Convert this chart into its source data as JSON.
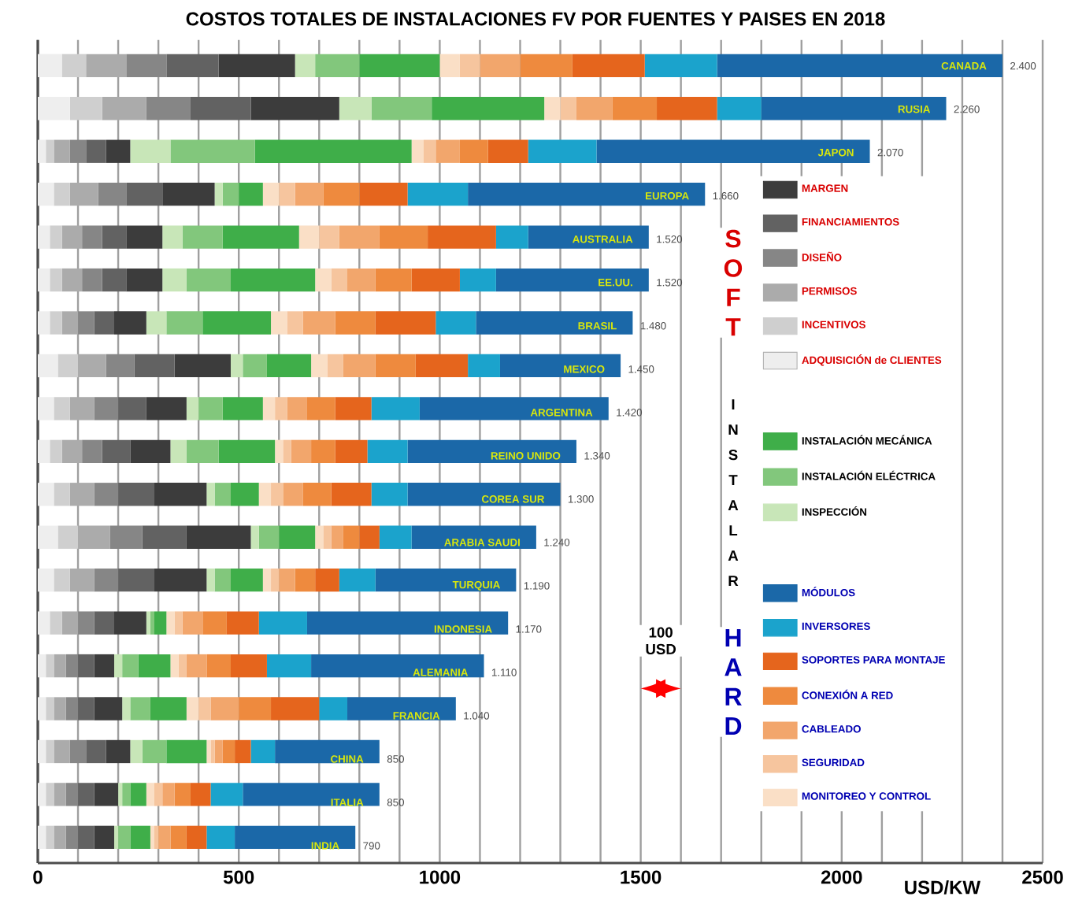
{
  "chart_data": {
    "type": "bar",
    "orientation": "horizontal",
    "stacked": true,
    "title": "COSTOS TOTALES DE INSTALACIONES FV POR FUENTES Y PAISES EN 2018",
    "xlabel": "USD/KW",
    "categories": [
      "CANADA",
      "RUSIA",
      "JAPON",
      "EUROPA",
      "AUSTRALIA",
      "EE.UU.",
      "BRASIL",
      "MEXICO",
      "ARGENTINA",
      "REINO UNIDO",
      "COREA SUR",
      "ARABIA SAUDI",
      "TURQUIA",
      "INDONESIA",
      "ALEMANIA",
      "FRANCIA",
      "CHINA",
      "ITALIA",
      "INDIA"
    ],
    "series": [
      {
        "name": "ADQUISICIÓN de CLIENTES",
        "color": "#eeeeee",
        "values": [
          60,
          80,
          20,
          40,
          30,
          30,
          30,
          50,
          40,
          30,
          40,
          50,
          40,
          30,
          20,
          20,
          20,
          20,
          20
        ]
      },
      {
        "name": "INCENTIVOS",
        "color": "#cfcfcf",
        "values": [
          60,
          80,
          20,
          40,
          30,
          30,
          30,
          50,
          40,
          30,
          40,
          50,
          40,
          30,
          20,
          20,
          20,
          20,
          20
        ]
      },
      {
        "name": "PERMISOS",
        "color": "#ababab",
        "values": [
          100,
          110,
          40,
          70,
          50,
          50,
          40,
          70,
          60,
          50,
          60,
          80,
          60,
          40,
          30,
          30,
          40,
          30,
          30
        ]
      },
      {
        "name": "DISEÑO",
        "color": "#868686",
        "values": [
          100,
          110,
          40,
          70,
          50,
          50,
          40,
          70,
          60,
          50,
          60,
          80,
          60,
          40,
          30,
          30,
          40,
          30,
          30
        ]
      },
      {
        "name": "FINANCIAMIENTOS",
        "color": "#626262",
        "values": [
          130,
          150,
          50,
          90,
          60,
          60,
          50,
          100,
          70,
          70,
          90,
          110,
          90,
          50,
          40,
          40,
          50,
          40,
          40
        ]
      },
      {
        "name": "MARGEN",
        "color": "#3c3c3c",
        "values": [
          190,
          220,
          60,
          130,
          90,
          90,
          80,
          140,
          100,
          100,
          130,
          160,
          130,
          80,
          50,
          70,
          60,
          60,
          50
        ]
      },
      {
        "name": "INSPECCIÓN",
        "color": "#c8e6b8",
        "values": [
          50,
          80,
          100,
          20,
          50,
          60,
          50,
          30,
          30,
          40,
          20,
          20,
          20,
          10,
          20,
          20,
          30,
          10,
          10
        ]
      },
      {
        "name": "INSTALACIÓN ELÉCTRICA",
        "color": "#82c77c",
        "values": [
          110,
          150,
          210,
          40,
          100,
          110,
          90,
          60,
          60,
          80,
          40,
          50,
          40,
          10,
          40,
          50,
          60,
          20,
          30
        ]
      },
      {
        "name": "INSTALACIÓN MECÁNICA",
        "color": "#3fae49",
        "values": [
          200,
          280,
          390,
          60,
          190,
          210,
          170,
          110,
          100,
          140,
          70,
          90,
          80,
          30,
          80,
          90,
          100,
          40,
          50
        ]
      },
      {
        "name": "MONITOREO Y CONTROL",
        "color": "#fadfc6",
        "values": [
          50,
          40,
          30,
          40,
          50,
          40,
          40,
          40,
          30,
          20,
          30,
          20,
          20,
          20,
          20,
          30,
          10,
          20,
          10
        ]
      },
      {
        "name": "SEGURIDAD",
        "color": "#f6c59e",
        "values": [
          50,
          40,
          30,
          40,
          50,
          40,
          40,
          40,
          30,
          20,
          30,
          20,
          20,
          20,
          20,
          30,
          10,
          20,
          10
        ]
      },
      {
        "name": "CABLEADO",
        "color": "#f2a66c",
        "values": [
          100,
          90,
          60,
          70,
          100,
          70,
          80,
          80,
          50,
          50,
          50,
          30,
          40,
          50,
          50,
          70,
          20,
          30,
          30
        ]
      },
      {
        "name": "CONEXIÓN A RED",
        "color": "#ee8a3e",
        "values": [
          130,
          110,
          70,
          90,
          120,
          90,
          100,
          100,
          70,
          60,
          70,
          40,
          50,
          60,
          60,
          80,
          30,
          40,
          40
        ]
      },
      {
        "name": "SOPORTES PARA MONTAJE",
        "color": "#e5651d",
        "values": [
          180,
          150,
          100,
          120,
          170,
          120,
          150,
          130,
          90,
          80,
          100,
          50,
          60,
          80,
          90,
          120,
          40,
          50,
          50
        ]
      },
      {
        "name": "INVERSORES",
        "color": "#1ba3cc",
        "values": [
          180,
          110,
          170,
          150,
          80,
          90,
          100,
          80,
          120,
          100,
          90,
          80,
          90,
          120,
          110,
          70,
          60,
          80,
          70
        ]
      },
      {
        "name": "MÓDULOS",
        "color": "#1b68a8",
        "values": [
          710,
          460,
          680,
          590,
          300,
          380,
          390,
          300,
          470,
          420,
          380,
          310,
          350,
          500,
          430,
          270,
          260,
          340,
          300
        ]
      }
    ],
    "totals": [
      "2.400",
      "2.260",
      "2.070",
      "1.660",
      "1.520",
      "1.520",
      "1.480",
      "1.450",
      "1.420",
      "1.340",
      "1.300",
      "1.240",
      "1.190",
      "1.170",
      "1.110",
      "1.040",
      "850",
      "850",
      "790"
    ],
    "xlim": [
      0,
      2500
    ],
    "xticks": [
      0,
      {
        "value": 100,
        "label": null
      },
      {
        "value": 200,
        "label": null
      },
      {
        "value": 300,
        "label": null
      },
      {
        "value": 400,
        "label": null
      },
      500,
      {
        "value": 600,
        "label": null
      },
      {
        "value": 700,
        "label": null
      },
      {
        "value": 800,
        "label": null
      },
      {
        "value": 900,
        "label": null
      },
      1000,
      {
        "value": 1100,
        "label": null
      },
      {
        "value": 1200,
        "label": null
      },
      {
        "value": 1300,
        "label": null
      },
      {
        "value": 1400,
        "label": null
      },
      1500,
      {
        "value": 1600,
        "label": null
      },
      {
        "value": 1700,
        "label": null
      },
      {
        "value": 1800,
        "label": null
      },
      {
        "value": 1900,
        "label": null
      },
      2000,
      {
        "value": 2100,
        "label": null
      },
      {
        "value": 2200,
        "label": null
      },
      {
        "value": 2300,
        "label": null
      },
      {
        "value": 2400,
        "label": null
      },
      2500
    ],
    "grid": "x",
    "legend": "right",
    "annotations": [
      "S O F T",
      "I N S T A L A R",
      "H A R D",
      "100 USD"
    ]
  }
}
